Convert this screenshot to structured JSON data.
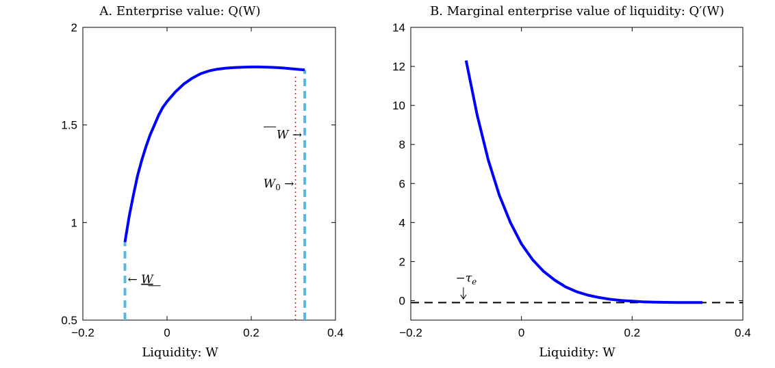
{
  "chart_data": [
    {
      "type": "line",
      "title": "A. Enterprise value: Q(W)",
      "xlabel": "Liquidity: W",
      "ylabel": "",
      "xlim": [
        -0.2,
        0.4
      ],
      "ylim": [
        0.5,
        2
      ],
      "xticks": [
        -0.2,
        0,
        0.2,
        0.4
      ],
      "xtick_labels": [
        "−0.2",
        "0",
        "0.2",
        "0.4"
      ],
      "yticks": [
        0.5,
        1,
        1.5,
        2
      ],
      "ytick_labels": [
        "0.5",
        "1",
        "1.5",
        "2"
      ],
      "grid": false,
      "series": [
        {
          "color": "#0000ff",
          "x": [
            -0.1,
            -0.09,
            -0.08,
            -0.07,
            -0.06,
            -0.05,
            -0.04,
            -0.03,
            -0.02,
            -0.01,
            0,
            0.02,
            0.04,
            0.06,
            0.08,
            0.1,
            0.12,
            0.14,
            0.16,
            0.18,
            0.2,
            0.22,
            0.24,
            0.26,
            0.28,
            0.3,
            0.327
          ],
          "y": [
            0.9,
            1.03,
            1.14,
            1.24,
            1.32,
            1.39,
            1.45,
            1.5,
            1.55,
            1.59,
            1.62,
            1.67,
            1.71,
            1.74,
            1.763,
            1.777,
            1.786,
            1.791,
            1.794,
            1.796,
            1.797,
            1.797,
            1.796,
            1.794,
            1.791,
            1.787,
            1.782
          ]
        }
      ],
      "vlines": [
        {
          "x": -0.1,
          "y0": 0.5,
          "y1": 0.9,
          "style": "dashed",
          "color": "#5cb8e0"
        },
        {
          "x": 0.327,
          "y0": 0.5,
          "y1": 1.782,
          "style": "dashed",
          "color": "#5cb8e0"
        },
        {
          "x": 0.305,
          "y0": 0.5,
          "y1": 1.75,
          "style": "dotted",
          "color": "#ff0000"
        }
      ],
      "annotations": [
        {
          "text": "← W",
          "note": "lower bound (underlined W)",
          "x": -0.1,
          "y": 0.69
        },
        {
          "text": "W →",
          "note": "upper bound (overlined W)",
          "x": 0.327,
          "y": 1.43
        },
        {
          "text": "W0 →",
          "x": 0.305,
          "y": 1.18
        }
      ]
    },
    {
      "type": "line",
      "title": "B. Marginal enterprise value of liquidity: Q′(W)",
      "xlabel": "Liquidity: W",
      "ylabel": "",
      "xlim": [
        -0.2,
        0.4
      ],
      "ylim": [
        -1,
        14
      ],
      "xticks": [
        -0.2,
        0,
        0.2,
        0.4
      ],
      "xtick_labels": [
        "−0.2",
        "0",
        "0.2",
        "0.4"
      ],
      "yticks": [
        0,
        2,
        4,
        6,
        8,
        10,
        12,
        14
      ],
      "ytick_labels": [
        "0",
        "2",
        "4",
        "6",
        "8",
        "10",
        "12",
        "14"
      ],
      "grid": false,
      "series": [
        {
          "color": "#0000ff",
          "x": [
            -0.1,
            -0.08,
            -0.06,
            -0.04,
            -0.02,
            0,
            0.02,
            0.04,
            0.06,
            0.08,
            0.1,
            0.12,
            0.14,
            0.16,
            0.18,
            0.2,
            0.22,
            0.24,
            0.26,
            0.28,
            0.3,
            0.327
          ],
          "y": [
            12.3,
            9.5,
            7.2,
            5.4,
            4.0,
            2.9,
            2.1,
            1.5,
            1.05,
            0.7,
            0.45,
            0.28,
            0.16,
            0.07,
            0.01,
            -0.03,
            -0.06,
            -0.08,
            -0.09,
            -0.1,
            -0.1,
            -0.1
          ]
        }
      ],
      "hlines": [
        {
          "y": -0.1,
          "style": "dashed",
          "color": "#000000"
        }
      ],
      "annotations": [
        {
          "text": "−τe",
          "x": -0.1,
          "y": 0.4
        }
      ]
    }
  ]
}
